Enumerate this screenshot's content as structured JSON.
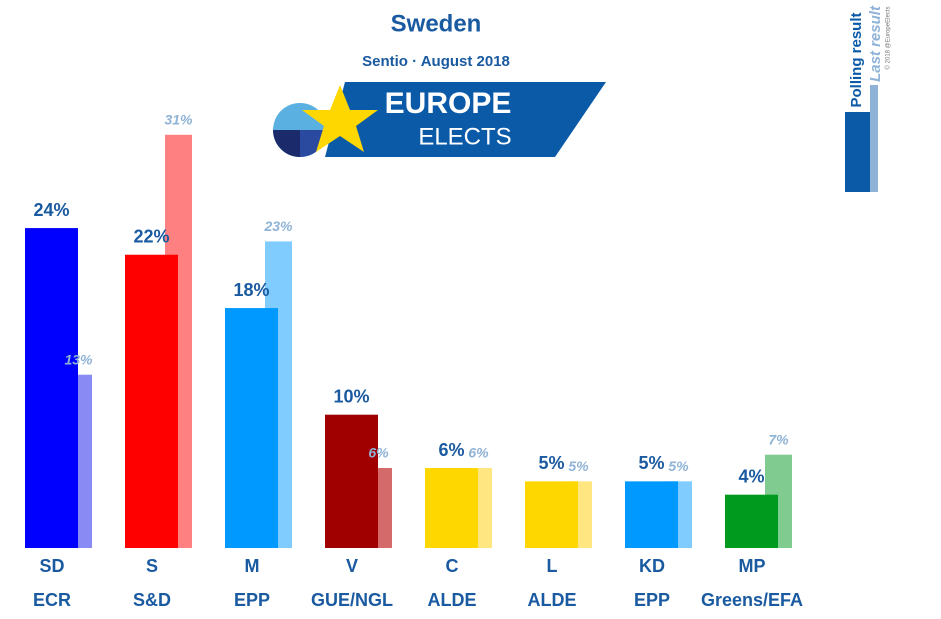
{
  "chart_data": {
    "type": "bar",
    "title": "Sweden",
    "subtitle": "Sentio · August 2018",
    "logo": {
      "line1": "EUROPE",
      "line2": "ELECTS"
    },
    "copyright": "© 2018 @EuropeElects",
    "categories": [
      "SD",
      "S",
      "M",
      "V",
      "C",
      "L",
      "KD",
      "MP"
    ],
    "groups": [
      "ECR",
      "S&D",
      "EPP",
      "GUE/NGL",
      "ALDE",
      "ALDE",
      "EPP",
      "Greens/EFA"
    ],
    "series": [
      {
        "name": "Polling result",
        "color": "#0b5aa8",
        "colors": [
          "#0000ff",
          "#ff0000",
          "#0099ff",
          "#a00000",
          "#ffd700",
          "#ffd700",
          "#0099ff",
          "#009a1e"
        ],
        "values": [
          24,
          22,
          18,
          10,
          6,
          5,
          5,
          4
        ],
        "value_labels": [
          "24%",
          "22%",
          "18%",
          "10%",
          "6%",
          "5%",
          "5%",
          "4%"
        ]
      },
      {
        "name": "Last result",
        "color": "#8fb3d6",
        "colors": [
          "#8a8af5",
          "#ff8080",
          "#80ccff",
          "#d46a6a",
          "#ffe680",
          "#ffe680",
          "#80ccff",
          "#80cc90"
        ],
        "values": [
          13,
          31,
          23,
          6,
          6,
          5,
          5,
          7
        ],
        "value_labels": [
          "13%",
          "31%",
          "23%",
          "6%",
          "6%",
          "5%",
          "5%",
          "7%"
        ]
      }
    ]
  }
}
